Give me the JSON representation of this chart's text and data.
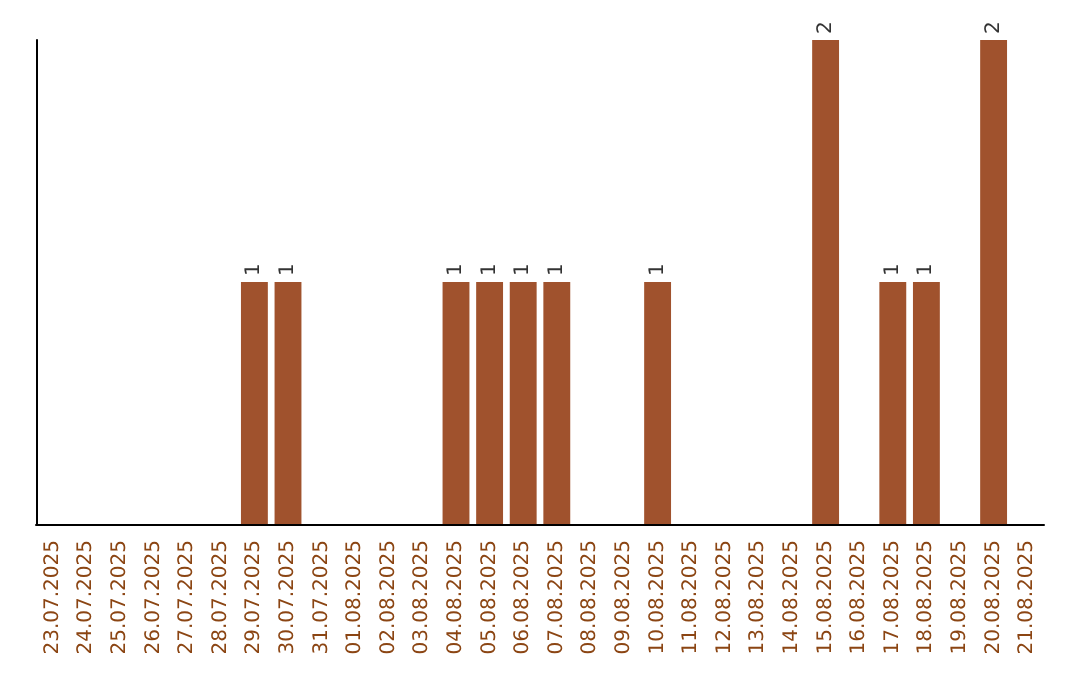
{
  "chart_data": {
    "type": "bar",
    "categories": [
      "23.07.2025",
      "24.07.2025",
      "25.07.2025",
      "26.07.2025",
      "27.07.2025",
      "28.07.2025",
      "29.07.2025",
      "30.07.2025",
      "31.07.2025",
      "01.08.2025",
      "02.08.2025",
      "03.08.2025",
      "04.08.2025",
      "05.08.2025",
      "06.08.2025",
      "07.08.2025",
      "08.08.2025",
      "09.08.2025",
      "10.08.2025",
      "11.08.2025",
      "12.08.2025",
      "13.08.2025",
      "14.08.2025",
      "15.08.2025",
      "16.08.2025",
      "17.08.2025",
      "18.08.2025",
      "19.08.2025",
      "20.08.2025",
      "21.08.2025"
    ],
    "values": [
      0,
      0,
      0,
      0,
      0,
      0,
      1,
      1,
      0,
      0,
      0,
      0,
      1,
      1,
      1,
      1,
      0,
      0,
      1,
      0,
      0,
      0,
      0,
      2,
      0,
      1,
      1,
      0,
      2,
      0
    ],
    "value_labels": [
      null,
      null,
      null,
      null,
      null,
      null,
      "1",
      "1",
      null,
      null,
      null,
      null,
      "1",
      "1",
      "1",
      "1",
      null,
      null,
      "1",
      null,
      null,
      null,
      null,
      "2",
      null,
      "1",
      "1",
      null,
      "2",
      null
    ],
    "color": "#a0522d",
    "ylim": [
      0,
      2
    ],
    "tick_labels": "x",
    "grid": false
  }
}
